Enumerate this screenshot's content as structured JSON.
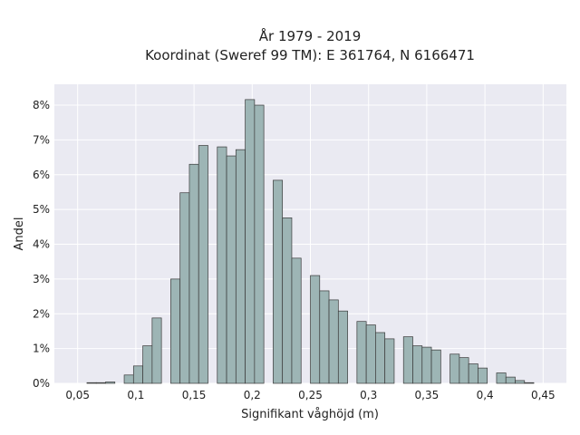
{
  "chart_data": {
    "type": "bar",
    "title_line1": "År 1979 - 2019",
    "title_line2": "Koordinat (Sweref 99 TM): E 361764, N 6166471",
    "xlabel": "Signifikant våghöjd (m)",
    "ylabel": "Andel",
    "x_ticks": [
      "0,05",
      "0,1",
      "0,15",
      "0,2",
      "0,25",
      "0,3",
      "0,35",
      "0,4",
      "0,45"
    ],
    "x_tick_values": [
      0.05,
      0.1,
      0.15,
      0.2,
      0.25,
      0.3,
      0.35,
      0.4,
      0.45
    ],
    "y_ticks": [
      "0%",
      "1%",
      "2%",
      "3%",
      "4%",
      "5%",
      "6%",
      "7%",
      "8%"
    ],
    "y_tick_values": [
      0,
      1,
      2,
      3,
      4,
      5,
      6,
      7,
      8
    ],
    "xlim": [
      0.03,
      0.47
    ],
    "ylim": [
      0,
      8.6
    ],
    "bin_width": 0.008,
    "bins": [
      {
        "x": 0.062,
        "y": 0.02
      },
      {
        "x": 0.07,
        "y": 0.02
      },
      {
        "x": 0.078,
        "y": 0.04
      },
      {
        "x": 0.094,
        "y": 0.24
      },
      {
        "x": 0.102,
        "y": 0.5
      },
      {
        "x": 0.11,
        "y": 1.08
      },
      {
        "x": 0.118,
        "y": 1.88
      },
      {
        "x": 0.134,
        "y": 3.0
      },
      {
        "x": 0.142,
        "y": 5.48
      },
      {
        "x": 0.15,
        "y": 6.3
      },
      {
        "x": 0.158,
        "y": 6.84
      },
      {
        "x": 0.174,
        "y": 6.8
      },
      {
        "x": 0.182,
        "y": 6.54
      },
      {
        "x": 0.19,
        "y": 6.72
      },
      {
        "x": 0.198,
        "y": 8.16
      },
      {
        "x": 0.206,
        "y": 8.0
      },
      {
        "x": 0.222,
        "y": 5.84
      },
      {
        "x": 0.23,
        "y": 4.76
      },
      {
        "x": 0.238,
        "y": 3.6
      },
      {
        "x": 0.254,
        "y": 3.1
      },
      {
        "x": 0.262,
        "y": 2.66
      },
      {
        "x": 0.27,
        "y": 2.4
      },
      {
        "x": 0.278,
        "y": 2.08
      },
      {
        "x": 0.294,
        "y": 1.78
      },
      {
        "x": 0.302,
        "y": 1.68
      },
      {
        "x": 0.31,
        "y": 1.46
      },
      {
        "x": 0.318,
        "y": 1.28
      },
      {
        "x": 0.334,
        "y": 1.34
      },
      {
        "x": 0.342,
        "y": 1.08
      },
      {
        "x": 0.35,
        "y": 1.04
      },
      {
        "x": 0.358,
        "y": 0.96
      },
      {
        "x": 0.374,
        "y": 0.84
      },
      {
        "x": 0.382,
        "y": 0.74
      },
      {
        "x": 0.39,
        "y": 0.56
      },
      {
        "x": 0.398,
        "y": 0.44
      },
      {
        "x": 0.414,
        "y": 0.3
      },
      {
        "x": 0.422,
        "y": 0.18
      },
      {
        "x": 0.43,
        "y": 0.08
      },
      {
        "x": 0.438,
        "y": 0.02
      }
    ],
    "grid": true,
    "colors": {
      "background": "#eaeaf2",
      "bar_fill": "#9db5b5",
      "bar_edge": "#3a3a3a",
      "grid": "#ffffff"
    }
  }
}
